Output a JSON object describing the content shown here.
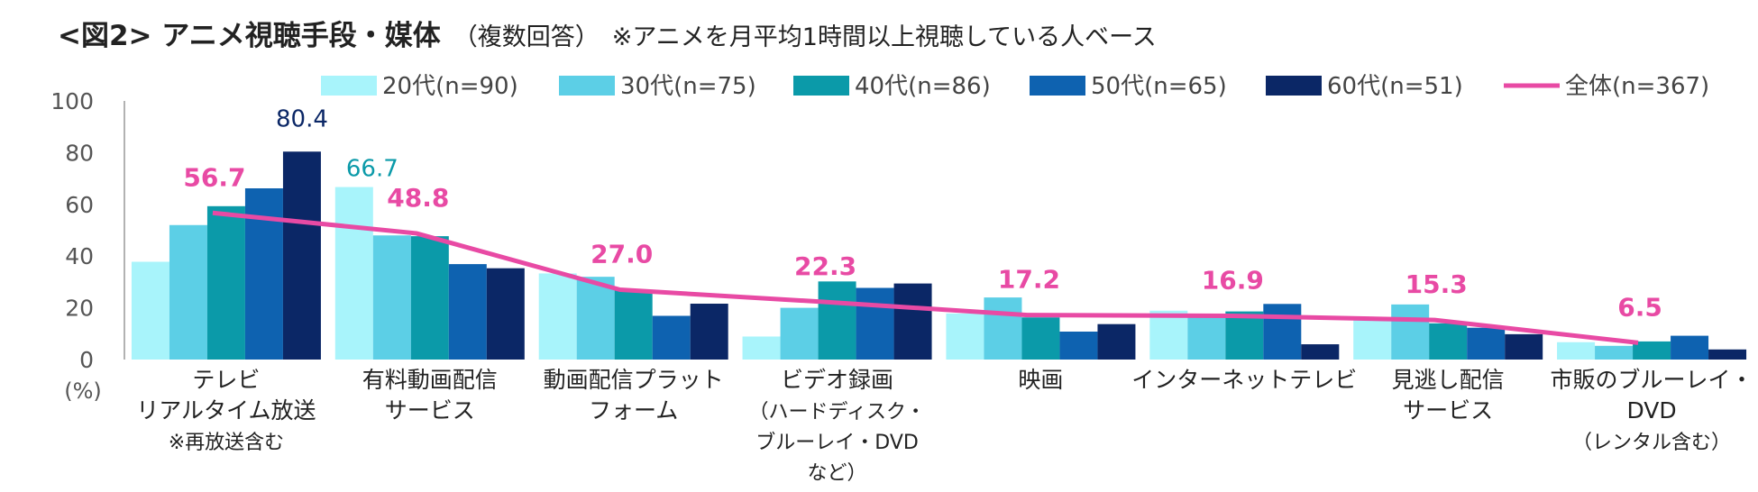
{
  "header": {
    "title": "<図2> アニメ視聴手段・媒体",
    "subtitle": "（複数回答）",
    "note": "※アニメを月平均1時間以上視聴している人ベース"
  },
  "chart_data": {
    "type": "bar",
    "yunit": "(%)",
    "ylim": [
      0,
      100
    ],
    "yticks": [
      0,
      20,
      40,
      60,
      80,
      100
    ],
    "categories": [
      "テレビ\nリアルタイム放送\n※再放送含む",
      "有料動画配信\nサービス",
      "動画配信プラット\nフォーム",
      "ビデオ録画\n（ハードディスク・\nブルーレイ・DVD\nなど）",
      "映画",
      "インターネットテレビ",
      "見逃し配信\nサービス",
      "市販のブルーレイ・\nDVD\n（レンタル含む）"
    ],
    "series": [
      {
        "name": "20代(n=90)",
        "color": "#a8f4fb",
        "values": [
          37.8,
          66.7,
          33.3,
          8.9,
          17.8,
          18.9,
          15.6,
          6.7
        ]
      },
      {
        "name": "30代(n=75)",
        "color": "#5ccfe6",
        "values": [
          52.0,
          48.0,
          32.0,
          20.0,
          24.0,
          17.3,
          21.3,
          5.3
        ]
      },
      {
        "name": "40代(n=86)",
        "color": "#0b9aa9",
        "values": [
          59.3,
          47.7,
          26.7,
          30.2,
          16.3,
          18.6,
          14.0,
          7.0
        ]
      },
      {
        "name": "50代(n=65)",
        "color": "#0e62b0",
        "values": [
          66.2,
          36.9,
          16.9,
          27.7,
          10.8,
          21.5,
          12.3,
          9.2
        ]
      },
      {
        "name": "60代(n=51)",
        "color": "#0b2766",
        "values": [
          80.4,
          35.3,
          21.6,
          29.4,
          13.7,
          5.9,
          9.8,
          3.9
        ]
      }
    ],
    "total": {
      "name": "全体(n=367)",
      "color": "#e84aa4",
      "values": [
        56.7,
        48.8,
        27.0,
        22.3,
        17.2,
        16.9,
        15.3,
        6.5
      ]
    },
    "value_labels": [
      {
        "text": "80.4",
        "series": 4,
        "category": 0,
        "color": "#0b2766"
      },
      {
        "text": "66.7",
        "series": 0,
        "category": 1,
        "color": "#0b9aa9"
      }
    ]
  }
}
